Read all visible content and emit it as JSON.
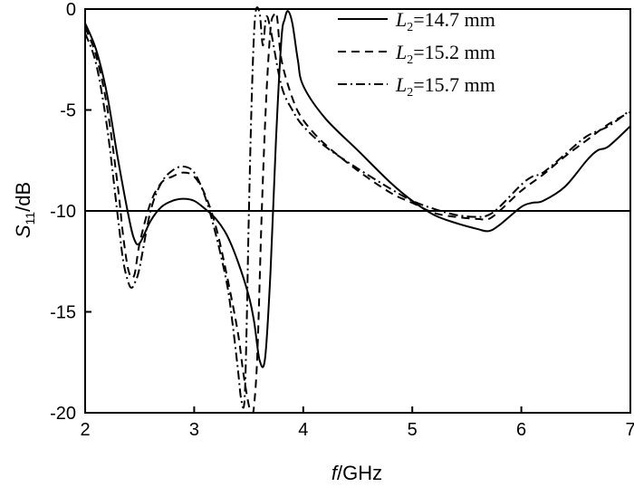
{
  "chart_data": {
    "type": "line",
    "xlabel_italic": "f",
    "xlabel_rest": "/GHz",
    "ylabel_main": "S",
    "ylabel_sub": "11",
    "ylabel_rest": "/dB",
    "xlim": [
      2,
      7
    ],
    "ylim": [
      -20,
      0
    ],
    "x_ticks": [
      2,
      3,
      4,
      5,
      6,
      7
    ],
    "y_ticks": [
      0,
      -5,
      -10,
      -15,
      -20
    ],
    "grid": false,
    "legend_position": "top-right",
    "reference_line": {
      "y": -10
    },
    "series": [
      {
        "name_italic": "L",
        "name_sub": "2",
        "name_rest": "=14.7 mm",
        "dash": "solid",
        "x": [
          2.0,
          2.1,
          2.2,
          2.3,
          2.4,
          2.45,
          2.5,
          2.6,
          2.7,
          2.8,
          2.9,
          3.0,
          3.1,
          3.2,
          3.3,
          3.4,
          3.5,
          3.55,
          3.6,
          3.65,
          3.7,
          3.75,
          3.8,
          3.83,
          3.86,
          3.9,
          3.95,
          4.0,
          4.2,
          4.5,
          4.8,
          5.0,
          5.2,
          5.4,
          5.6,
          5.7,
          5.8,
          6.0,
          6.1,
          6.2,
          6.4,
          6.6,
          6.7,
          6.8,
          7.0
        ],
        "y": [
          -0.7,
          -2.0,
          -4.2,
          -7.4,
          -10.3,
          -11.4,
          -11.6,
          -10.5,
          -9.8,
          -9.5,
          -9.4,
          -9.5,
          -9.9,
          -10.4,
          -11.2,
          -12.5,
          -14.2,
          -15.5,
          -17.4,
          -17.3,
          -13.0,
          -6.5,
          -1.5,
          -0.5,
          -0.1,
          -0.7,
          -2.5,
          -3.8,
          -5.4,
          -7.0,
          -8.6,
          -9.5,
          -10.2,
          -10.6,
          -10.9,
          -11.0,
          -10.7,
          -9.8,
          -9.6,
          -9.5,
          -8.8,
          -7.5,
          -7.0,
          -6.8,
          -5.8
        ]
      },
      {
        "name_italic": "L",
        "name_sub": "2",
        "name_rest": "=15.2 mm",
        "dash": "dashed",
        "x": [
          2.0,
          2.1,
          2.2,
          2.3,
          2.35,
          2.4,
          2.45,
          2.5,
          2.6,
          2.7,
          2.8,
          2.9,
          3.0,
          3.1,
          3.2,
          3.3,
          3.4,
          3.45,
          3.5,
          3.53,
          3.55,
          3.58,
          3.62,
          3.66,
          3.7,
          3.73,
          3.76,
          3.8,
          3.9,
          4.0,
          4.2,
          4.5,
          4.8,
          5.0,
          5.2,
          5.4,
          5.6,
          5.7,
          5.8,
          6.0,
          6.2,
          6.4,
          6.6,
          6.8,
          7.0
        ],
        "y": [
          -0.9,
          -2.3,
          -4.8,
          -8.8,
          -11.3,
          -13.0,
          -13.2,
          -11.6,
          -9.6,
          -8.6,
          -8.3,
          -8.1,
          -8.3,
          -9.2,
          -10.8,
          -13.2,
          -16.0,
          -18.0,
          -19.6,
          -20.0,
          -19.6,
          -17.0,
          -10.0,
          -4.5,
          -1.0,
          -0.3,
          -0.4,
          -2.5,
          -4.4,
          -5.5,
          -6.7,
          -8.0,
          -9.1,
          -9.6,
          -10.1,
          -10.3,
          -10.4,
          -10.4,
          -10.0,
          -9.0,
          -8.2,
          -7.3,
          -6.5,
          -5.7,
          -5.1
        ]
      },
      {
        "name_italic": "L",
        "name_sub": "2",
        "name_rest": "=15.7 mm",
        "dash": "dashdot",
        "x": [
          2.0,
          2.1,
          2.2,
          2.3,
          2.35,
          2.4,
          2.43,
          2.46,
          2.5,
          2.6,
          2.7,
          2.8,
          2.9,
          3.0,
          3.1,
          3.2,
          3.3,
          3.35,
          3.4,
          3.43,
          3.46,
          3.48,
          3.5,
          3.53,
          3.56,
          3.6,
          3.63,
          3.66,
          3.7,
          3.8,
          3.9,
          4.0,
          4.2,
          4.5,
          4.8,
          5.0,
          5.2,
          5.4,
          5.6,
          5.7,
          5.8,
          6.0,
          6.1,
          6.2,
          6.4,
          6.6,
          6.8,
          7.0
        ],
        "y": [
          -1.2,
          -2.7,
          -5.8,
          -10.3,
          -12.5,
          -13.6,
          -13.8,
          -13.5,
          -12.8,
          -10.0,
          -8.6,
          -8.0,
          -7.8,
          -8.1,
          -9.3,
          -11.2,
          -13.6,
          -15.5,
          -17.8,
          -19.3,
          -19.5,
          -16.0,
          -10.5,
          -4.0,
          -0.3,
          -0.2,
          -1.8,
          -0.4,
          -1.0,
          -3.8,
          -5.0,
          -5.8,
          -6.8,
          -7.9,
          -8.9,
          -9.5,
          -9.9,
          -10.2,
          -10.3,
          -10.2,
          -9.8,
          -8.7,
          -8.3,
          -8.1,
          -7.2,
          -6.3,
          -5.8,
          -5.0
        ]
      }
    ]
  }
}
